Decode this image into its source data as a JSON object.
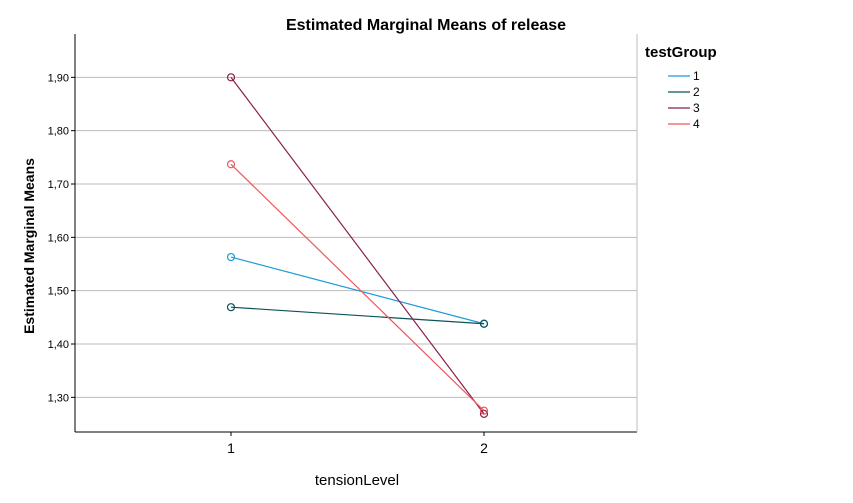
{
  "chart_data": {
    "type": "line",
    "title": "Estimated Marginal Means of release",
    "xlabel": "tensionLevel",
    "ylabel": "Estimated Marginal Means",
    "categories": [
      "1",
      "2"
    ],
    "y_tick_labels": [
      "1,30",
      "1,40",
      "1,50",
      "1,60",
      "1,70",
      "1,80",
      "1,90"
    ],
    "y_tick_values": [
      1.3,
      1.4,
      1.5,
      1.6,
      1.7,
      1.8,
      1.9
    ],
    "ylim": [
      1.235,
      1.97
    ],
    "grid": true,
    "legend": {
      "title": "testGroup",
      "placement": "right"
    },
    "series": [
      {
        "name": "1",
        "color": "#1f9bd7",
        "values": [
          1.563,
          1.438
        ]
      },
      {
        "name": "2",
        "color": "#0b5357",
        "values": [
          1.469,
          1.438
        ]
      },
      {
        "name": "3",
        "color": "#8a1f4f",
        "values": [
          1.9,
          1.269
        ]
      },
      {
        "name": "4",
        "color": "#f2545b",
        "values": [
          1.737,
          1.275
        ]
      }
    ]
  }
}
